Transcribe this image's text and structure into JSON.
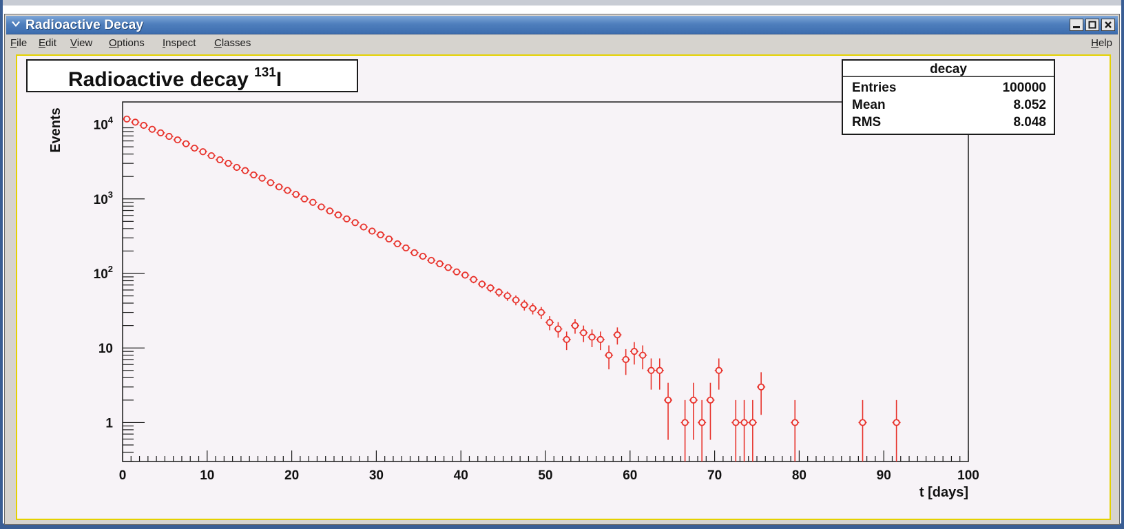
{
  "window": {
    "title": "Radioactive Decay",
    "menus": [
      {
        "label": "File",
        "key": "F",
        "rest": "ile"
      },
      {
        "label": "Edit",
        "key": "E",
        "rest": "dit"
      },
      {
        "label": "View",
        "key": "V",
        "rest": "iew"
      },
      {
        "label": "Options",
        "key": "O",
        "rest": "ptions"
      },
      {
        "label": "Inspect",
        "key": "I",
        "rest": "nspect"
      },
      {
        "label": "Classes",
        "key": "C",
        "rest": "lasses"
      }
    ],
    "help": {
      "label": "Help",
      "key": "H",
      "rest": "elp"
    }
  },
  "icons": {
    "window_menu": "chevron-down-icon",
    "minimize": "minimize-icon",
    "maximize": "maximize-icon",
    "close": "close-icon"
  },
  "colors": {
    "marker": "#e8322b",
    "frame_accent": "#e4d100",
    "canvas_bg": "#f7f3f7"
  },
  "stats_box": {
    "title": "decay",
    "rows": [
      {
        "label": "Entries",
        "value": "100000"
      },
      {
        "label": "Mean",
        "value": "8.052"
      },
      {
        "label": "RMS",
        "value": "8.048"
      }
    ]
  },
  "chart_data": {
    "type": "scatter",
    "title": "Radioactive decay",
    "title_isotope_mass": "131",
    "title_element": "I",
    "xlabel": "t [days]",
    "ylabel": "Events",
    "xlim": [
      0,
      100
    ],
    "ylim": [
      0.3,
      20000
    ],
    "y_scale": "log",
    "grid": false,
    "legend": "top-right",
    "x_ticks": [
      "0",
      "10",
      "20",
      "30",
      "40",
      "50",
      "60",
      "70",
      "80",
      "90",
      "100"
    ],
    "y_ticks": [
      {
        "value": 1,
        "base": "1",
        "exp": ""
      },
      {
        "value": 10,
        "base": "10",
        "exp": ""
      },
      {
        "value": 100,
        "base": "10",
        "exp": "2"
      },
      {
        "value": 1000,
        "base": "10",
        "exp": "3"
      },
      {
        "value": 10000,
        "base": "10",
        "exp": "4"
      }
    ],
    "series": [
      {
        "x": [
          0.5,
          1.5,
          2.5,
          3.5,
          4.5,
          5.5,
          6.5,
          7.5,
          8.5,
          9.5,
          10.5,
          11.5,
          12.5,
          13.5,
          14.5,
          15.5,
          16.5,
          17.5,
          18.5,
          19.5,
          20.5,
          21.5,
          22.5,
          23.5,
          24.5,
          25.5,
          26.5,
          27.5,
          28.5,
          29.5,
          30.5,
          31.5,
          32.5,
          33.5,
          34.5,
          35.5,
          36.5,
          37.5,
          38.5,
          39.5,
          40.5,
          41.5,
          42.5,
          43.5,
          44.5,
          45.5,
          46.5,
          47.5,
          48.5,
          49.5,
          50.5,
          51.5,
          52.5,
          53.5,
          54.5,
          55.5,
          56.5,
          57.5,
          58.5,
          59.5,
          60.5,
          61.5,
          62.5,
          63.5,
          64.5,
          66.5,
          67.5,
          68.5,
          69.5,
          70.5,
          72.5,
          73.5,
          74.5,
          75.5,
          79.5,
          87.5,
          91.5
        ],
        "y": [
          11800,
          10700,
          9700,
          8600,
          7700,
          6900,
          6200,
          5500,
          4800,
          4300,
          3800,
          3350,
          3000,
          2650,
          2400,
          2100,
          1900,
          1650,
          1450,
          1300,
          1150,
          1000,
          900,
          780,
          690,
          610,
          540,
          480,
          420,
          370,
          330,
          290,
          250,
          220,
          190,
          170,
          150,
          135,
          120,
          105,
          95,
          83,
          72,
          64,
          56,
          50,
          44,
          38,
          34,
          30,
          22,
          18,
          13,
          20,
          16,
          14,
          13,
          8,
          15,
          7,
          9,
          8,
          5,
          5,
          2,
          1,
          2,
          1,
          2,
          5,
          1,
          1,
          1,
          3,
          1,
          1,
          1
        ]
      }
    ]
  }
}
